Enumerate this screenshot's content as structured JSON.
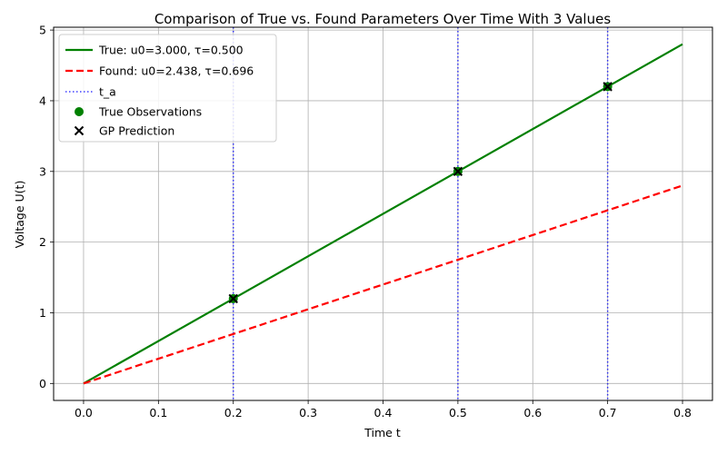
{
  "chart_data": {
    "type": "line",
    "title": "Comparison of True vs. Found Parameters Over Time With 3 Values",
    "xlabel": "Time t",
    "ylabel": "Voltage U(t)",
    "xlim": [
      -0.04,
      0.84
    ],
    "ylim": [
      -0.24,
      5.04
    ],
    "x_ticks": [
      "0.0",
      "0.1",
      "0.2",
      "0.3",
      "0.4",
      "0.5",
      "0.6",
      "0.7",
      "0.8"
    ],
    "y_ticks": [
      "0",
      "1",
      "2",
      "3",
      "4",
      "5"
    ],
    "grid": true,
    "legend_position": "top-left",
    "series": [
      {
        "name": "True: u0=3.000, τ=0.500",
        "style": "solid",
        "color": "#008000",
        "x": [
          0.0,
          0.8
        ],
        "y": [
          0.0,
          4.8
        ]
      },
      {
        "name": "Found: u0=2.438, τ=0.696",
        "style": "dashed",
        "color": "#ff0000",
        "x": [
          0.0,
          0.8
        ],
        "y": [
          0.0,
          2.8
        ]
      }
    ],
    "vlines": {
      "name": "t_a",
      "style": "dotted",
      "color": "#0000ff",
      "x": [
        0.2,
        0.5,
        0.7
      ]
    },
    "true_observations": {
      "name": "True Observations",
      "color": "#008000",
      "x": [
        0.2,
        0.5,
        0.7
      ],
      "y": [
        1.2,
        3.0,
        4.2
      ]
    },
    "gp_prediction": {
      "name": "GP Prediction",
      "color": "#000000",
      "x": [
        0.2,
        0.5,
        0.7
      ],
      "y": [
        1.2,
        3.0,
        4.2
      ]
    }
  }
}
